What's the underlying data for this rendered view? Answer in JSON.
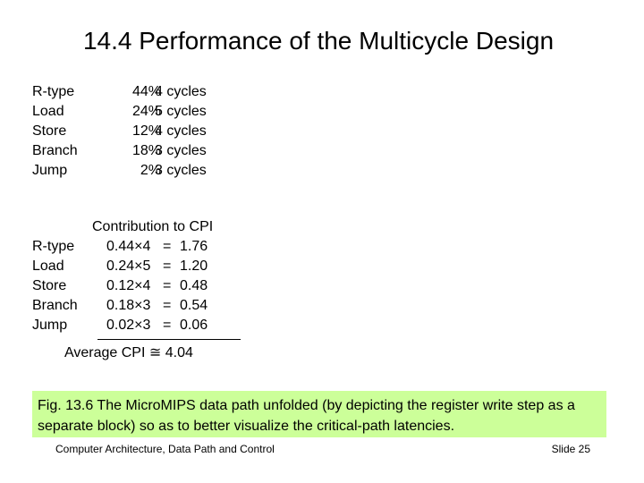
{
  "title": "14.4  Performance of the Multicycle Design",
  "instruction_mix": [
    {
      "type": "R-type",
      "percent": "44%",
      "cycles": "4 cycles"
    },
    {
      "type": "Load",
      "percent": "24%",
      "cycles": "5 cycles"
    },
    {
      "type": "Store",
      "percent": "12%",
      "cycles": "4 cycles"
    },
    {
      "type": "Branch",
      "percent": "18%",
      "cycles": "3 cycles"
    },
    {
      "type": "Jump",
      "percent": "2%",
      "cycles": "3 cycles"
    }
  ],
  "cpi": {
    "header": "Contribution to CPI",
    "rows": [
      {
        "type": "R-type",
        "expr": "0.44×4",
        "eq": "=",
        "value": "1.76"
      },
      {
        "type": "Load",
        "expr": "0.24×5",
        "eq": "=",
        "value": "1.20"
      },
      {
        "type": "Store",
        "expr": "0.12×4",
        "eq": "=",
        "value": "0.48"
      },
      {
        "type": "Branch",
        "expr": "0.18×3",
        "eq": "=",
        "value": "0.54"
      },
      {
        "type": "Jump",
        "expr": "0.02×3",
        "eq": "=",
        "value": "0.06"
      }
    ],
    "average": "Average CPI ≅ 4.04"
  },
  "caption": "Fig. 13.6    The MicroMIPS data path unfolded (by depicting the register write step as a separate block) so as to better visualize the critical-path latencies.",
  "footer": {
    "left": "Computer Architecture, Data Path and Control",
    "right": "Slide 25"
  },
  "colors": {
    "caption_background": "#ccff99"
  }
}
